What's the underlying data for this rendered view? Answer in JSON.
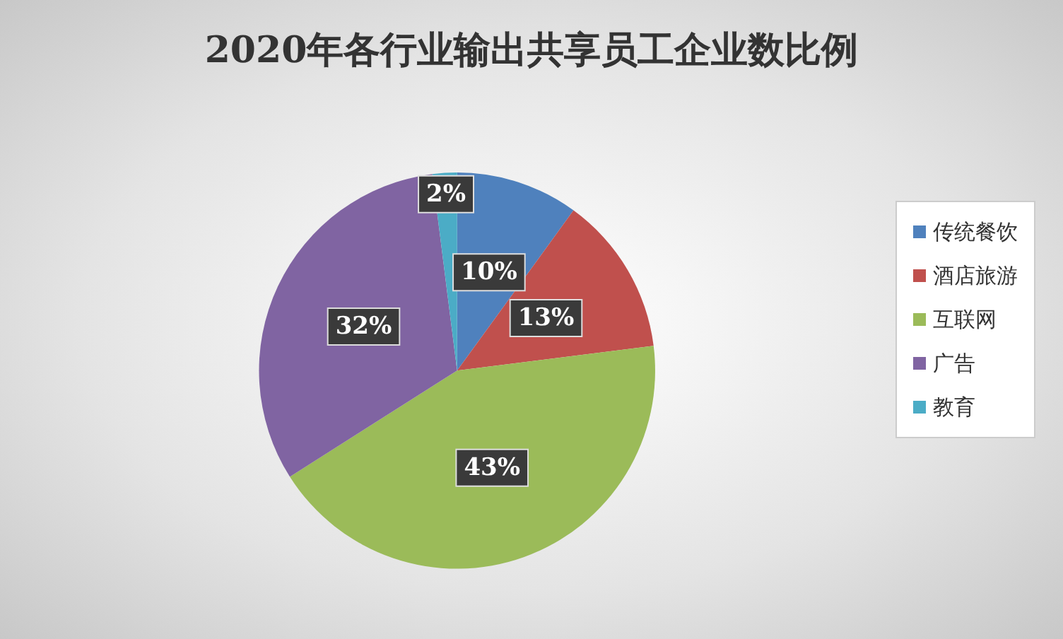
{
  "chart_data": {
    "type": "pie",
    "title": "2020年各行业输出共享员工企业数比例",
    "categories": [
      "传统餐饮",
      "酒店旅游",
      "互联网",
      "广告",
      "教育"
    ],
    "values": [
      10,
      13,
      43,
      32,
      2
    ],
    "colors": [
      "#4f81bd",
      "#c0504d",
      "#9bbb59",
      "#8064a2",
      "#4bacc6"
    ],
    "value_labels": [
      "10%",
      "13%",
      "43%",
      "32%",
      "2%"
    ],
    "legend": "right"
  }
}
